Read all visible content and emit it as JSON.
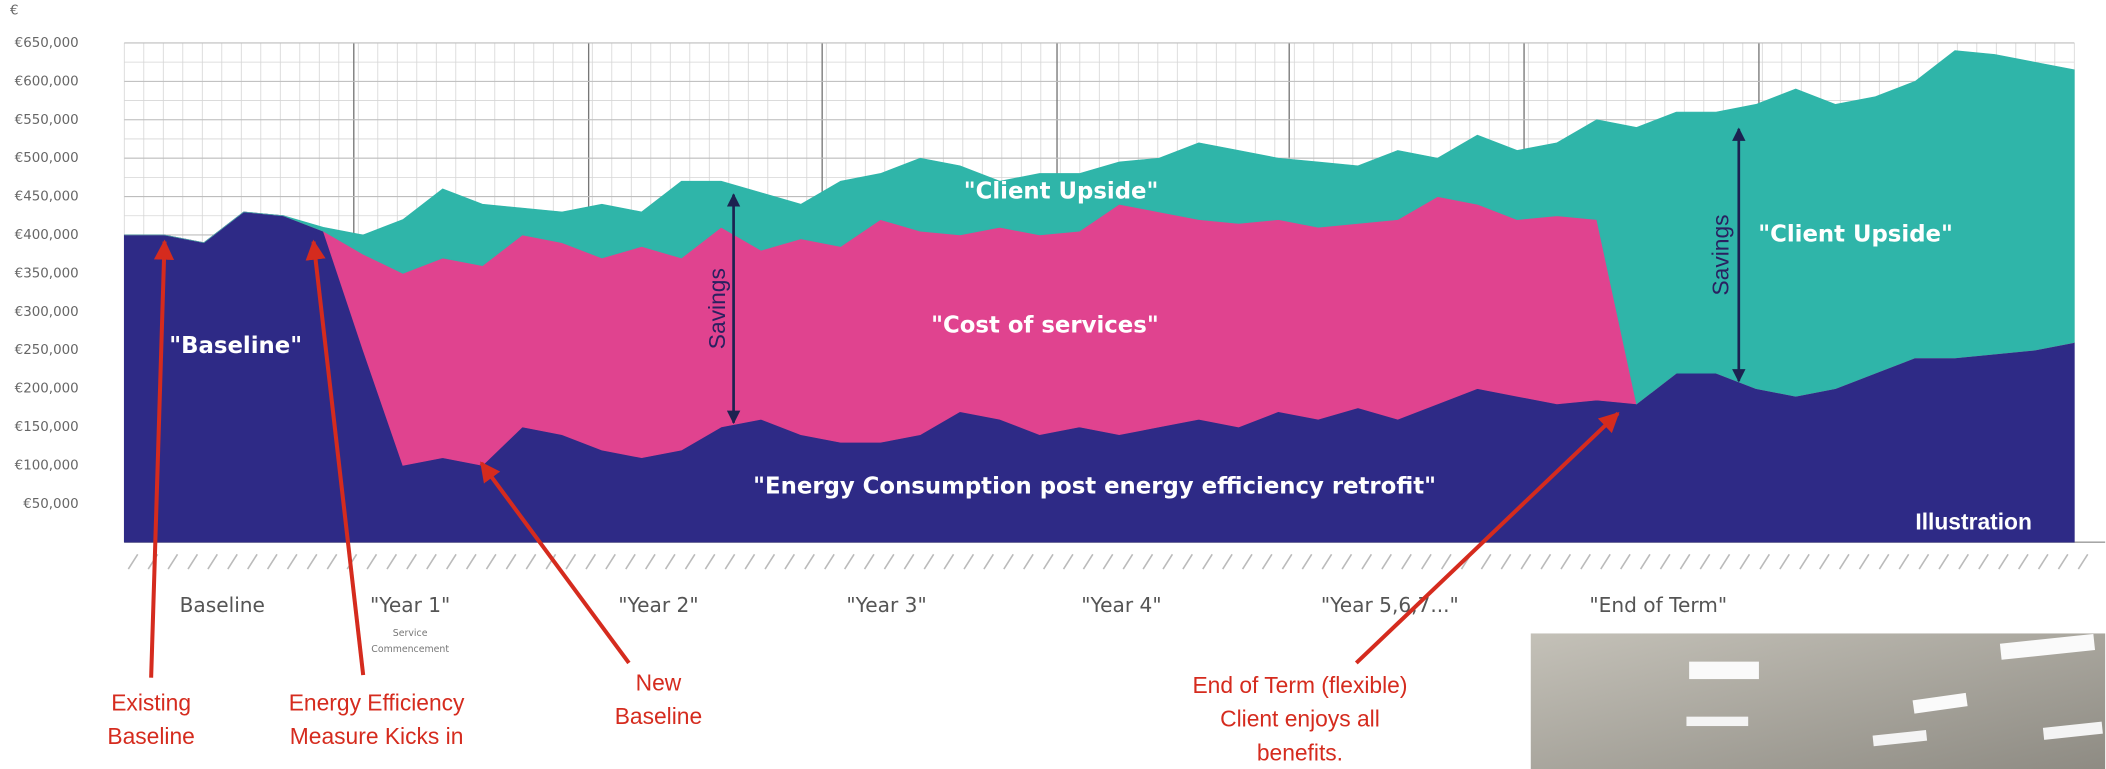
{
  "chart_data": {
    "type": "area",
    "stacked": true,
    "ylabel": "€",
    "ylim": [
      0,
      650000
    ],
    "yticks": [
      {
        "value": 50000,
        "label": "€50,000"
      },
      {
        "value": 100000,
        "label": "€100,000"
      },
      {
        "value": 150000,
        "label": "€150,000"
      },
      {
        "value": 200000,
        "label": "€200,000"
      },
      {
        "value": 250000,
        "label": "€250,000"
      },
      {
        "value": 300000,
        "label": "€300,000"
      },
      {
        "value": 350000,
        "label": "€350,000"
      },
      {
        "value": 400000,
        "label": "€400,000"
      },
      {
        "value": 450000,
        "label": "€450,000"
      },
      {
        "value": 500000,
        "label": "€500,000"
      },
      {
        "value": 550000,
        "label": "€550,000"
      },
      {
        "value": 600000,
        "label": "€600,000"
      },
      {
        "value": 650000,
        "label": "€650,000"
      }
    ],
    "grid": true,
    "categories": [
      null,
      null,
      null,
      null,
      null,
      null,
      null,
      null,
      null,
      null,
      null,
      null,
      null,
      null,
      null,
      null,
      null,
      null,
      null,
      null,
      null,
      null,
      null,
      null,
      null,
      null,
      null,
      null,
      null,
      null,
      null,
      null,
      null,
      null,
      null,
      null,
      null,
      null,
      null,
      null,
      null,
      null,
      null,
      null,
      null,
      null,
      null,
      null,
      null,
      null
    ],
    "series": [
      {
        "name": "\"Energy Consumption post energy efficiency retrofit\"",
        "color": "#2e2a86",
        "values": [
          400000,
          400000,
          390000,
          430000,
          425000,
          405000,
          250000,
          100000,
          110000,
          100000,
          150000,
          140000,
          120000,
          110000,
          120000,
          150000,
          160000,
          140000,
          130000,
          130000,
          140000,
          170000,
          160000,
          140000,
          150000,
          140000,
          150000,
          160000,
          150000,
          170000,
          160000,
          175000,
          160000,
          180000,
          200000,
          190000,
          180000,
          185000,
          180000,
          220000,
          220000,
          200000,
          190000,
          200000,
          220000,
          240000,
          240000,
          245000,
          250000,
          260000
        ]
      },
      {
        "name": "\"Cost of services\"",
        "color": "#e0438f",
        "values": [
          0,
          0,
          0,
          0,
          0,
          0,
          125000,
          250000,
          260000,
          260000,
          250000,
          250000,
          250000,
          275000,
          250000,
          260000,
          220000,
          255000,
          255000,
          290000,
          265000,
          230000,
          250000,
          260000,
          255000,
          300000,
          280000,
          260000,
          265000,
          250000,
          250000,
          240000,
          260000,
          270000,
          240000,
          230000,
          245000,
          235000,
          0,
          0,
          0,
          0,
          0,
          0,
          0,
          0,
          0,
          0,
          0,
          0
        ]
      },
      {
        "name": "\"Client Upside\"",
        "color": "#2fb5a9",
        "values": [
          0,
          0,
          0,
          0,
          0,
          5000,
          25000,
          70000,
          90000,
          80000,
          35000,
          40000,
          70000,
          45000,
          100000,
          60000,
          75000,
          45000,
          85000,
          60000,
          95000,
          90000,
          60000,
          80000,
          75000,
          55000,
          70000,
          100000,
          95000,
          80000,
          85000,
          75000,
          90000,
          50000,
          90000,
          90000,
          95000,
          130000,
          360000,
          340000,
          340000,
          370000,
          400000,
          370000,
          360000,
          360000,
          400000,
          390000,
          375000,
          355000
        ]
      }
    ],
    "annotations": {
      "baseline_label": "\"Baseline\"",
      "client_upside_2": "\"Client Upside\"",
      "illustration": "Illustration",
      "savings": [
        "Savings",
        "Savings"
      ],
      "periods": [
        "Baseline",
        "\"Year 1\"",
        "\"Year 2\"",
        "\"Year 3\"",
        "\"Year 4\"",
        "\"Year 5,6,7...\"",
        "\"End of Term\""
      ],
      "service_commencement": [
        "Service",
        "Commencement"
      ],
      "callouts": [
        [
          "Existing",
          "Baseline"
        ],
        [
          "Energy Efficiency",
          "Measure Kicks in"
        ],
        [
          "New",
          "Baseline"
        ],
        [
          "End of Term (flexible)",
          "Client enjoys all",
          "benefits."
        ]
      ]
    }
  }
}
